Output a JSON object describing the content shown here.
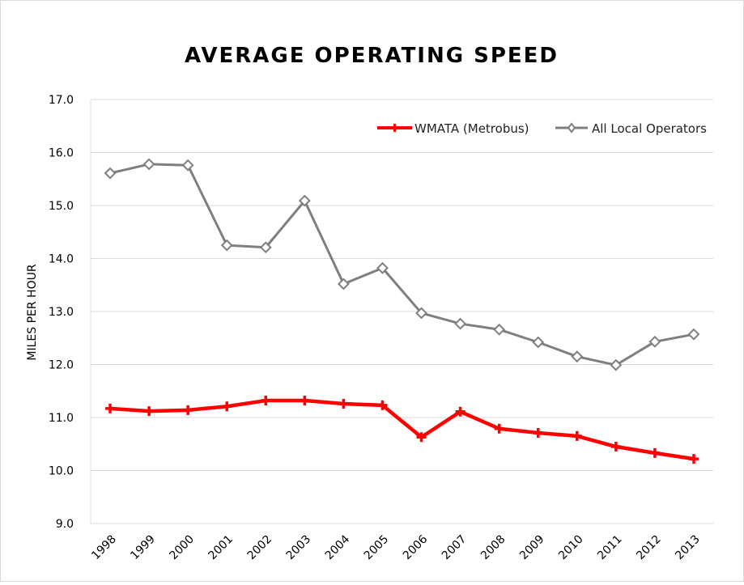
{
  "chart_data": {
    "type": "line",
    "title": "AVERAGE OPERATING SPEED",
    "xlabel": "",
    "ylabel": "MILES PER HOUR",
    "ylim": [
      9.0,
      17.0
    ],
    "ytick_step": 1.0,
    "y_ticks": [
      "9.0",
      "10.0",
      "11.0",
      "12.0",
      "13.0",
      "14.0",
      "15.0",
      "16.0",
      "17.0"
    ],
    "grid": true,
    "legend_position": "top-right",
    "categories": [
      "1998",
      "1999",
      "2000",
      "2001",
      "2002",
      "2003",
      "2004",
      "2005",
      "2006",
      "2007",
      "2008",
      "2009",
      "2010",
      "2011",
      "2012",
      "2013"
    ],
    "series": [
      {
        "name": "WMATA (Metrobus)",
        "color": "#ff0000",
        "marker": "plus",
        "values": [
          11.17,
          11.12,
          11.14,
          11.21,
          11.32,
          11.32,
          11.26,
          11.23,
          10.63,
          11.11,
          10.79,
          10.71,
          10.65,
          10.45,
          10.33,
          10.22
        ]
      },
      {
        "name": "All Local Operators",
        "color": "#7f7f7f",
        "marker": "diamond",
        "values": [
          15.61,
          15.78,
          15.76,
          14.25,
          14.21,
          15.09,
          13.52,
          13.82,
          12.97,
          12.77,
          12.66,
          12.42,
          12.15,
          11.99,
          12.43,
          12.57
        ]
      }
    ]
  }
}
